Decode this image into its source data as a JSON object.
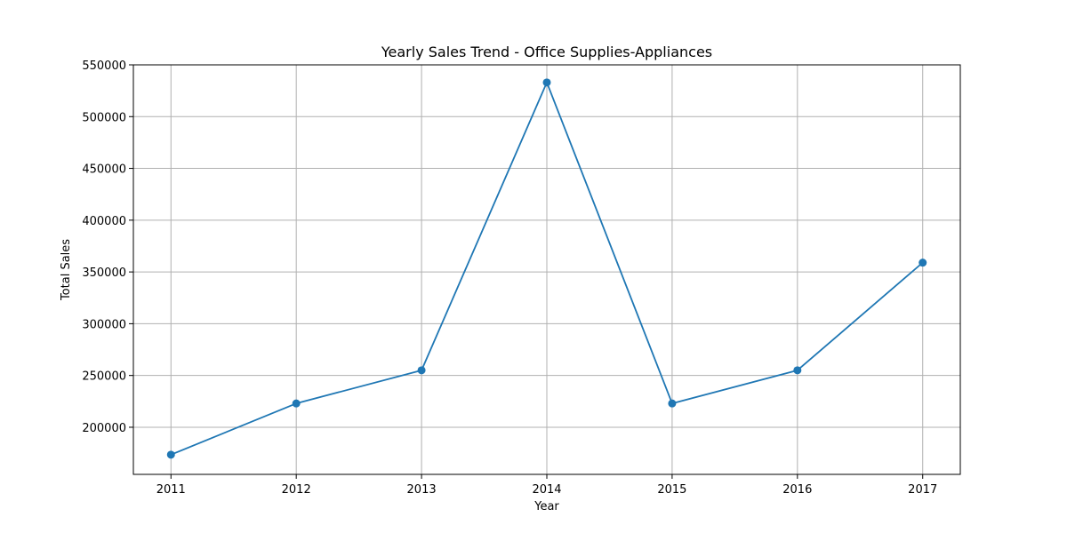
{
  "chart_data": {
    "type": "line",
    "title": "Yearly Sales Trend - Office Supplies-Appliances",
    "xlabel": "Year",
    "ylabel": "Total Sales",
    "x": [
      2011,
      2012,
      2013,
      2014,
      2015,
      2016,
      2017
    ],
    "series": [
      {
        "values": [
          173500,
          223000,
          255000,
          533000,
          223000,
          255000,
          359000
        ],
        "color": "#1f77b4",
        "marker": "circle"
      }
    ],
    "xticks": [
      "2011",
      "2012",
      "2013",
      "2014",
      "2015",
      "2016",
      "2017"
    ],
    "yticks": [
      "200000",
      "250000",
      "300000",
      "350000",
      "400000",
      "450000",
      "500000",
      "550000"
    ],
    "ytick_values": [
      200000,
      250000,
      300000,
      350000,
      400000,
      450000,
      500000,
      550000
    ],
    "xlim": [
      2010.7,
      2017.3
    ],
    "ylim": [
      154500,
      550000
    ],
    "grid": true
  }
}
